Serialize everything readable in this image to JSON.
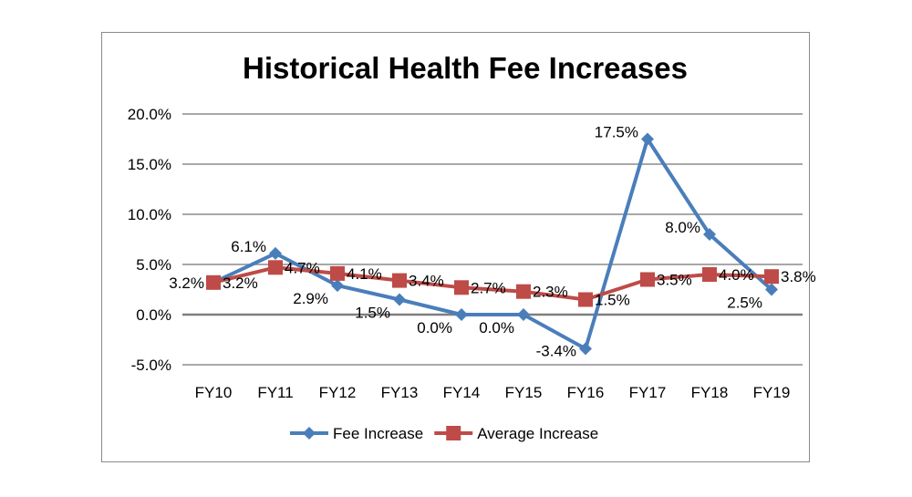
{
  "chart_data": {
    "type": "line",
    "title": "Historical Health Fee Increases",
    "categories": [
      "FY10",
      "FY11",
      "FY12",
      "FY13",
      "FY14",
      "FY15",
      "FY16",
      "FY17",
      "FY18",
      "FY19"
    ],
    "ylim": [
      -5,
      20
    ],
    "yticks": [
      -5,
      0,
      5,
      10,
      15,
      20
    ],
    "ytick_labels": [
      "-5.0%",
      "0.0%",
      "5.0%",
      "10.0%",
      "15.0%",
      "20.0%"
    ],
    "grid": true,
    "legend_placement": "bottom",
    "series": [
      {
        "name": "Fee Increase",
        "color": "#4a7ebb",
        "marker": "diamond",
        "values": [
          3.2,
          6.1,
          2.9,
          1.5,
          0.0,
          0.0,
          -3.4,
          17.5,
          8.0,
          2.5
        ],
        "labels": [
          "3.2%",
          "6.1%",
          "2.9%",
          "1.5%",
          "0.0%",
          "0.0%",
          "-3.4%",
          "17.5%",
          "8.0%",
          "2.5%"
        ]
      },
      {
        "name": "Average Increase",
        "color": "#be4b48",
        "marker": "square",
        "values": [
          3.2,
          4.7,
          4.1,
          3.4,
          2.7,
          2.3,
          1.5,
          3.5,
          4.0,
          3.8
        ],
        "labels": [
          "3.2%",
          "4.7%",
          "4.1%",
          "3.4%",
          "2.7%",
          "2.3%",
          "1.5%",
          "3.5%",
          "4.0%",
          "3.8%"
        ]
      }
    ]
  }
}
